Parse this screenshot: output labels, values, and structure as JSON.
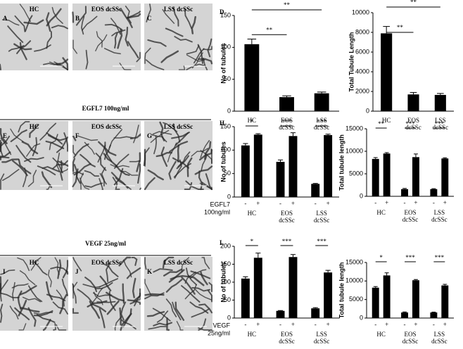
{
  "image_rows": [
    {
      "panels": [
        {
          "letter": "A",
          "label": "HC"
        },
        {
          "letter": "B",
          "label": "EOS dcSSc"
        },
        {
          "letter": "C",
          "label": "LSS dcSSc"
        }
      ]
    },
    {
      "heading": "EGFL7  100ng/ml",
      "panels": [
        {
          "letter": "E",
          "label": "HC"
        },
        {
          "letter": "F",
          "label": "EOS dcSSc"
        },
        {
          "letter": "G",
          "label": "LSS dcSSc"
        }
      ]
    },
    {
      "heading": "VEGF 25ng/ml",
      "panels": [
        {
          "letter": "I",
          "label": "HC"
        },
        {
          "letter": "J",
          "label": "EOS dcSSc"
        },
        {
          "letter": "K",
          "label": "LSS dcSSc"
        }
      ]
    }
  ],
  "chart_data": [
    {
      "type": "bar",
      "panel": "D",
      "ylabel": "No of tubules",
      "categories": [
        "HC",
        [
          "EOS",
          "dcSSc"
        ],
        [
          "LSS",
          "dcSSc"
        ]
      ],
      "values": [
        105,
        22,
        28
      ],
      "errors": [
        8,
        2,
        2
      ],
      "color": "#000000",
      "ylim": [
        0,
        150
      ],
      "yticks": [
        0,
        50,
        100,
        150
      ],
      "significance": [
        "**",
        "**"
      ]
    },
    {
      "type": "bar",
      "ylabel": "Total Tubule Length",
      "categories": [
        "HC",
        [
          "EOS",
          "dcSSc"
        ],
        [
          "LSS",
          "dcSSc"
        ]
      ],
      "values": [
        7900,
        1700,
        1650
      ],
      "errors": [
        700,
        200,
        150
      ],
      "color": "#000000",
      "ylim": [
        0,
        10000
      ],
      "yticks": [
        0,
        2000,
        4000,
        6000,
        8000,
        10000
      ],
      "significance": [
        "**",
        "**"
      ]
    },
    {
      "type": "bar",
      "panel": "H",
      "ylabel": "No of tubules",
      "treatment": [
        "EGFL7",
        "100ng/ml"
      ],
      "categories": [
        "HC",
        [
          "EOS",
          "dcSSc"
        ],
        [
          "LSS",
          "dcSSc"
        ]
      ],
      "series": [
        {
          "name": "-",
          "color": "#000000",
          "values": [
            110,
            75,
            28
          ],
          "errors": [
            4,
            4,
            1
          ]
        },
        {
          "name": "+",
          "color": "#000000",
          "values": [
            133,
            130,
            132
          ],
          "errors": [
            2,
            7,
            2
          ]
        }
      ],
      "ylim": [
        0,
        150
      ],
      "yticks": [
        0,
        50,
        100,
        150
      ],
      "significance": [
        "*",
        "***",
        "***"
      ]
    },
    {
      "type": "bar",
      "ylabel": "Total tubule length",
      "categories": [
        "HC",
        [
          "EOS",
          "dcSSc"
        ],
        [
          "LSS",
          "dcSSc"
        ]
      ],
      "series": [
        {
          "name": "-",
          "color": "#000000",
          "values": [
            8300,
            1600,
            1600
          ],
          "errors": [
            300,
            150,
            100
          ]
        },
        {
          "name": "+",
          "color": "#000000",
          "values": [
            9500,
            8700,
            8400
          ],
          "errors": [
            200,
            700,
            150
          ]
        }
      ],
      "ylim": [
        0,
        15000
      ],
      "yticks": [
        0,
        5000,
        10000,
        15000
      ],
      "significance": [
        "**",
        "***",
        "***"
      ]
    },
    {
      "type": "bar",
      "panel": "L",
      "ylabel": "No of tubules",
      "treatment": [
        "VEGF",
        "25ng/ml"
      ],
      "categories": [
        "HC",
        [
          "EOS",
          "dcSSc"
        ],
        [
          "LSS",
          "dcSSc"
        ]
      ],
      "series": [
        {
          "name": "-",
          "color": "#000000",
          "values": [
            110,
            20,
            27
          ],
          "errors": [
            5,
            1,
            2
          ]
        },
        {
          "name": "+",
          "color": "#000000",
          "values": [
            168,
            170,
            127
          ],
          "errors": [
            13,
            7,
            6
          ]
        }
      ],
      "ylim": [
        0,
        200
      ],
      "yticks": [
        0,
        50,
        100,
        150,
        200
      ],
      "significance": [
        "*",
        "***",
        "***"
      ]
    },
    {
      "type": "bar",
      "ylabel": "Total tubule length",
      "categories": [
        "HC",
        [
          "EOS",
          "dcSSc"
        ],
        [
          "LSS",
          "dcSSc"
        ]
      ],
      "series": [
        {
          "name": "-",
          "color": "#000000",
          "values": [
            8200,
            1500,
            1500
          ],
          "errors": [
            300,
            150,
            100
          ]
        },
        {
          "name": "+",
          "color": "#000000",
          "values": [
            11500,
            10200,
            8800
          ],
          "errors": [
            700,
            200,
            300
          ]
        }
      ],
      "ylim": [
        0,
        15000
      ],
      "yticks": [
        0,
        5000,
        10000,
        15000
      ],
      "significance": [
        "*",
        "***",
        "***"
      ]
    }
  ]
}
